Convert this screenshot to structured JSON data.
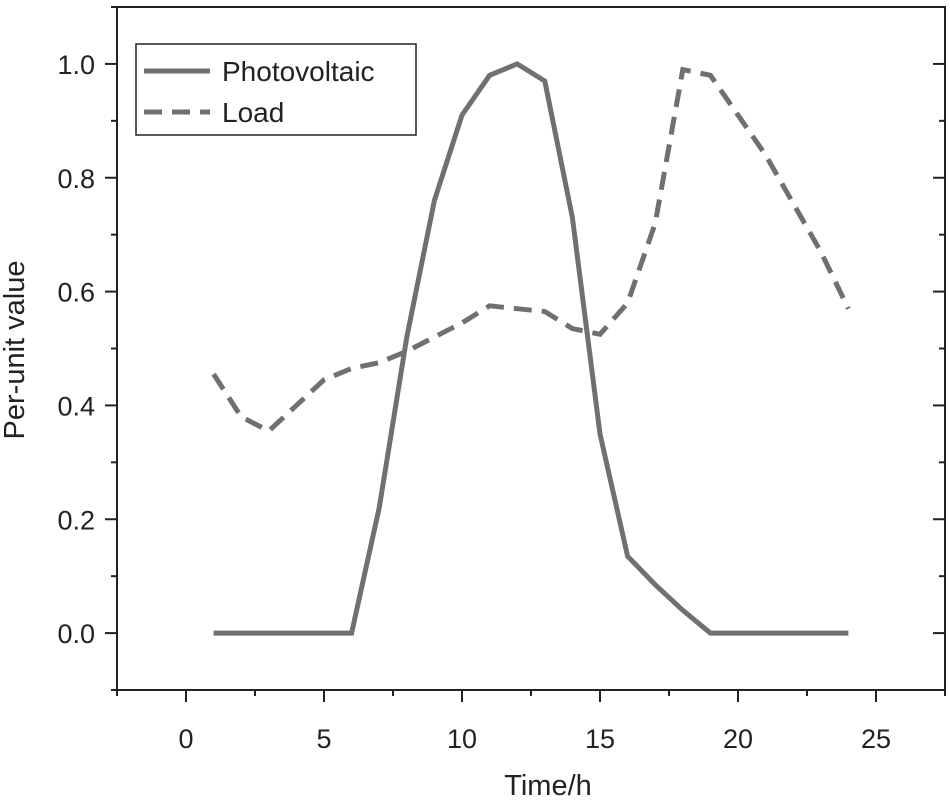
{
  "chart_data": {
    "type": "line",
    "title": "",
    "xlabel": "Time/h",
    "ylabel": "Per-unit value",
    "xlim": [
      -2.5,
      27.5
    ],
    "ylim": [
      -0.1,
      1.1
    ],
    "xticks": [
      0,
      5,
      10,
      15,
      20,
      25
    ],
    "xtick_labels": [
      "0",
      "5",
      "10",
      "15",
      "20",
      "25"
    ],
    "yticks": [
      0.0,
      0.2,
      0.4,
      0.6,
      0.8,
      1.0
    ],
    "ytick_labels": [
      "0.0",
      "0.2",
      "0.4",
      "0.6",
      "0.8",
      "1.0"
    ],
    "grid": false,
    "legend_position": "top-left",
    "series": [
      {
        "name": "Photovoltaic",
        "style": "solid",
        "color": "#707070",
        "x": [
          1,
          2,
          3,
          4,
          5,
          6,
          7,
          8,
          9,
          10,
          11,
          12,
          13,
          14,
          15,
          16,
          17,
          18,
          19,
          20,
          21,
          22,
          23,
          24
        ],
        "values": [
          0,
          0,
          0,
          0,
          0,
          0,
          0.22,
          0.52,
          0.76,
          0.91,
          0.98,
          1.0,
          0.97,
          0.73,
          0.35,
          0.135,
          0.085,
          0.04,
          0,
          0,
          0,
          0,
          0,
          0
        ]
      },
      {
        "name": "Load",
        "style": "dashed",
        "color": "#707070",
        "x": [
          1,
          2,
          3,
          4,
          5,
          6,
          7,
          8,
          9,
          10,
          11,
          12,
          13,
          14,
          15,
          16,
          17,
          18,
          19,
          20,
          21,
          22,
          23,
          24
        ],
        "values": [
          0.455,
          0.38,
          0.355,
          0.4,
          0.445,
          0.465,
          0.475,
          0.495,
          0.52,
          0.545,
          0.575,
          0.57,
          0.565,
          0.535,
          0.525,
          0.58,
          0.72,
          0.99,
          0.98,
          0.91,
          0.84,
          0.755,
          0.67,
          0.57
        ]
      }
    ]
  }
}
